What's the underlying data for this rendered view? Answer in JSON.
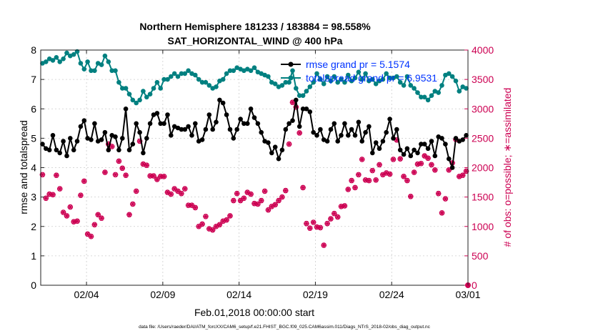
{
  "chart_data": {
    "type": "line",
    "title": "Northern Hemisphere 181233 / 183884 = 98.558%",
    "subtitle": "SAT_HORIZONTAL_WIND @ 400 hPa",
    "xlabel": "Feb.01,2018 00:00:00 start",
    "ylabel_left": "rmse and totalspread",
    "ylabel_right": "# of obs: o=possible; ∗=assimilated",
    "footer": "data file: /Users/raeder/DAI/ATM_forcXX/CAM6_setup/f.e21.FHIST_BGC.f09_025.CAM6assim.011/Diags_NTrS_2018-02/obs_diag_output.nc",
    "xlim": [
      1.0,
      29.0
    ],
    "ylim_left": [
      0,
      8
    ],
    "ylim_right": [
      0,
      4000
    ],
    "grid": true,
    "legend_position": "top-right",
    "x_ticks": [
      {
        "x": 4,
        "label": "02/04"
      },
      {
        "x": 9,
        "label": "02/09"
      },
      {
        "x": 14,
        "label": "02/14"
      },
      {
        "x": 19,
        "label": "02/19"
      },
      {
        "x": 24,
        "label": "02/24"
      },
      {
        "x": 29,
        "label": "03/01"
      }
    ],
    "y_ticks_left": [
      "0",
      "1",
      "2",
      "3",
      "4",
      "5",
      "6",
      "7",
      "8"
    ],
    "y_ticks_right": [
      "0",
      "500",
      "1000",
      "1500",
      "2000",
      "2500",
      "3000",
      "3500",
      "4000"
    ],
    "colors": {
      "rmse": "#000000",
      "spread": "#008080",
      "obs": "#cc0052",
      "legend_text": "#0033ff"
    },
    "series": [
      {
        "name": "rmse grand pr = 5.1574",
        "axis": "left",
        "values": [
          4.8,
          4.65,
          4.6,
          5.1,
          4.6,
          4.5,
          4.9,
          4.4,
          5.0,
          4.6,
          4.9,
          5.4,
          5.6,
          5.0,
          4.95,
          5.5,
          4.9,
          4.95,
          5.2,
          4.6,
          5.1,
          5.05,
          4.6,
          5.0,
          6.0,
          4.6,
          4.8,
          5.5,
          5.2,
          4.5,
          5.0,
          5.5,
          5.8,
          5.85,
          5.5,
          5.5,
          5.8,
          5.1,
          5.4,
          5.35,
          5.3,
          5.3,
          5.4,
          5.1,
          5.5,
          4.9,
          4.95,
          5.3,
          5.8,
          5.3,
          5.55,
          6.3,
          6.2,
          5.8,
          5.3,
          5.0,
          5.3,
          5.65,
          5.5,
          5.5,
          6.0,
          5.7,
          5.5,
          5.2,
          4.9,
          4.85,
          4.5,
          4.7,
          4.3,
          4.6,
          5.3,
          5.5,
          5.6,
          6.3,
          5.4,
          6.0,
          6.0,
          5.9,
          5.2,
          5.1,
          5.3,
          4.95,
          4.9,
          5.3,
          5.5,
          4.9,
          5.1,
          5.5,
          5.1,
          5.3,
          5.1,
          5.55,
          4.9,
          5.2,
          5.4,
          4.5,
          4.85,
          4.65,
          4.9,
          5.2,
          5.65,
          5.0,
          5.3,
          4.6,
          4.45,
          4.65,
          4.4,
          4.6,
          4.5,
          4.8,
          4.8,
          4.65,
          4.9,
          4.4,
          5.05,
          5.0,
          4.8,
          4.3,
          4.0,
          5.0,
          4.9,
          4.95,
          5.1
        ]
      },
      {
        "name": "totalspread grand pr = 6.9531",
        "axis": "left",
        "values": [
          7.55,
          7.6,
          7.7,
          7.65,
          7.75,
          7.6,
          7.7,
          7.9,
          7.8,
          7.85,
          7.95,
          7.55,
          7.35,
          7.6,
          7.3,
          7.3,
          7.55,
          7.5,
          7.8,
          7.6,
          7.3,
          7.3,
          6.9,
          6.7,
          6.7,
          6.5,
          6.3,
          6.2,
          6.3,
          6.6,
          6.4,
          6.5,
          6.7,
          6.9,
          6.7,
          7.0,
          7.0,
          7.1,
          7.2,
          7.1,
          7.2,
          7.2,
          7.3,
          7.2,
          7.15,
          7.0,
          6.9,
          6.9,
          6.8,
          6.7,
          6.75,
          6.95,
          7.0,
          7.2,
          7.3,
          7.3,
          7.4,
          7.35,
          7.3,
          7.35,
          7.3,
          7.4,
          7.25,
          7.2,
          7.15,
          7.1,
          6.9,
          6.85,
          6.75,
          6.8,
          6.9,
          6.9,
          7.3,
          6.7,
          6.45,
          6.45,
          6.6,
          6.75,
          6.9,
          7.2,
          7.0,
          6.85,
          7.1,
          6.95,
          7.1,
          6.9,
          7.0,
          6.9,
          7.15,
          6.95,
          7.05,
          7.25,
          7.0,
          7.2,
          6.95,
          7.0,
          6.85,
          6.95,
          7.0,
          7.2,
          7.05,
          7.05,
          7.1,
          6.9,
          6.8,
          7.1,
          6.8,
          6.7,
          6.55,
          6.4,
          6.4,
          6.3,
          6.45,
          6.6,
          6.55,
          6.8,
          7.15,
          7.2,
          7.1,
          6.95,
          6.6,
          6.75,
          6.7
        ]
      },
      {
        "name": "# of obs assimilated",
        "axis": "right",
        "values": [
          1880,
          1480,
          1550,
          1540,
          1870,
          1640,
          1240,
          1180,
          1330,
          1080,
          1090,
          1530,
          1770,
          870,
          830,
          1030,
          1200,
          1140,
          1920,
          2400,
          2360,
          1880,
          2110,
          1990,
          1870,
          1200,
          1380,
          1600,
          2450,
          2060,
          2040,
          1860,
          1860,
          1800,
          1850,
          1850,
          1580,
          1550,
          1640,
          1600,
          1560,
          1640,
          1360,
          1360,
          1320,
          1000,
          1040,
          1170,
          960,
          940,
          1000,
          1030,
          1090,
          1110,
          1180,
          1440,
          1560,
          1440,
          1480,
          1580,
          1550,
          1390,
          1380,
          1440,
          1600,
          1280,
          1340,
          1370,
          1440,
          1500,
          1610,
          2400,
          3110,
          3030,
          2590,
          1660,
          1050,
          970,
          1070,
          990,
          980,
          680,
          1050,
          1130,
          1220,
          1160,
          1340,
          1350,
          1630,
          1780,
          1660,
          1880,
          2140,
          1790,
          1780,
          1950,
          1790,
          2050,
          1880,
          1910,
          1890,
          2140,
          2470,
          2150,
          1850,
          1780,
          1510,
          1920,
          2060,
          2070,
          2200,
          2160,
          2050,
          1960,
          1560,
          1230,
          1470,
          1960,
          2080,
          2480,
          1850,
          1870,
          1940
        ]
      },
      {
        "name": "# of obs possible",
        "axis": "right",
        "values": [
          1880,
          1480,
          1550,
          1540,
          1870,
          1640,
          1240,
          1180,
          1330,
          1080,
          1090,
          1530,
          1770,
          870,
          830,
          1030,
          1200,
          1140,
          1920,
          2400,
          2360,
          1880,
          2110,
          1990,
          1870,
          1200,
          1380,
          1600,
          2450,
          2060,
          2040,
          1860,
          1860,
          1800,
          1850,
          1850,
          1580,
          1550,
          1640,
          1600,
          1560,
          1640,
          1360,
          1360,
          1320,
          1000,
          1040,
          1170,
          960,
          940,
          1000,
          1030,
          1090,
          1110,
          1180,
          1440,
          1560,
          1440,
          1480,
          1580,
          1550,
          1390,
          1380,
          1440,
          1600,
          1280,
          1340,
          1370,
          1440,
          1500,
          1610,
          2400,
          3110,
          3030,
          2590,
          1660,
          1050,
          970,
          1070,
          990,
          980,
          680,
          1050,
          1130,
          1220,
          1160,
          1340,
          1350,
          1630,
          1780,
          1660,
          1880,
          2140,
          1790,
          1780,
          1950,
          1790,
          2050,
          1880,
          1910,
          1890,
          2140,
          2470,
          2150,
          1850,
          1780,
          1510,
          1920,
          2060,
          2070,
          2200,
          2160,
          2050,
          1960,
          1560,
          1230,
          1470,
          1960,
          2080,
          2480,
          1850,
          1870,
          1940
        ]
      }
    ]
  }
}
